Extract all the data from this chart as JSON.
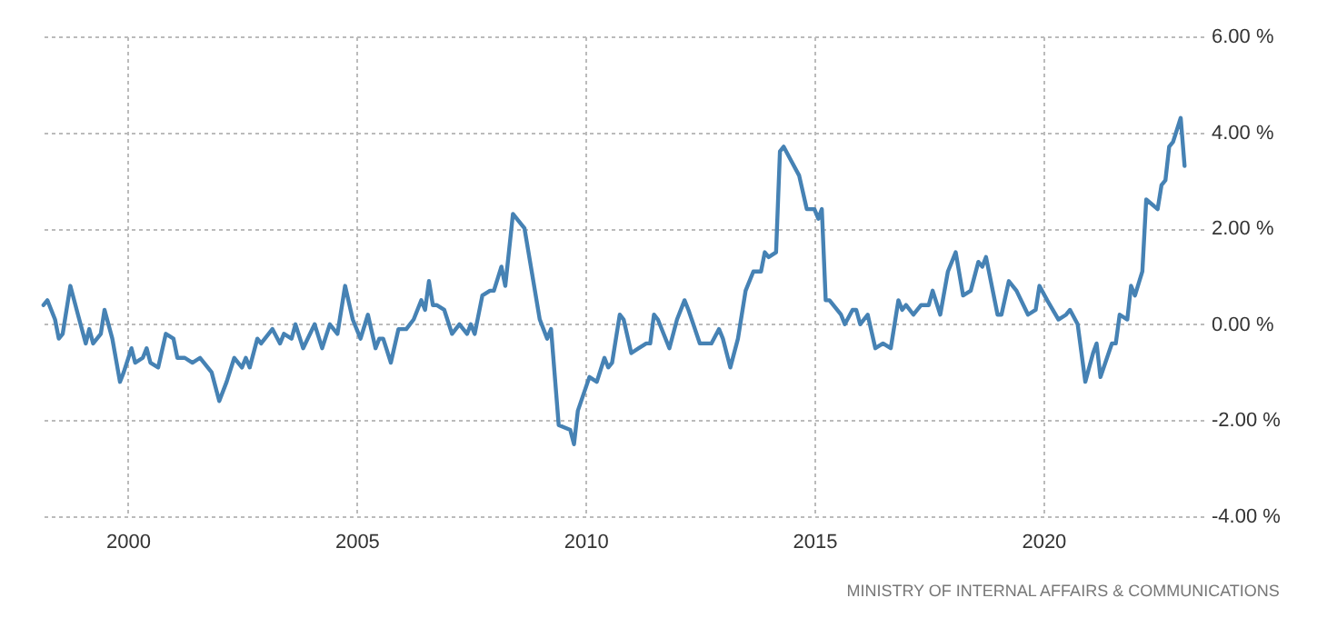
{
  "chart_data": {
    "type": "line",
    "annotations": [
      "MINISTRY OF INTERNAL AFFAIRS & COMMUNICATIONS"
    ],
    "x": [
      "1998-03",
      "1998-04",
      "1998-06",
      "1998-07",
      "1998-08",
      "1998-10",
      "1998-12",
      "1999-02",
      "1999-03",
      "1999-04",
      "1999-06",
      "1999-07",
      "1999-09",
      "1999-11",
      "1999-12",
      "2000-02",
      "2000-03",
      "2000-05",
      "2000-06",
      "2000-07",
      "2000-09",
      "2000-11",
      "2001-01",
      "2001-02",
      "2001-04",
      "2001-06",
      "2001-08",
      "2001-09",
      "2001-11",
      "2002-01",
      "2002-03",
      "2002-05",
      "2002-07",
      "2002-08",
      "2002-09",
      "2002-11",
      "2002-12",
      "2003-03",
      "2003-05",
      "2003-06",
      "2003-08",
      "2003-09",
      "2003-11",
      "2004-02",
      "2004-04",
      "2004-06",
      "2004-08",
      "2004-10",
      "2004-12",
      "2005-02",
      "2005-04",
      "2005-06",
      "2005-07",
      "2005-08",
      "2005-10",
      "2005-12",
      "2006-02",
      "2006-04",
      "2006-06",
      "2006-07",
      "2006-08",
      "2006-09",
      "2006-10",
      "2006-12",
      "2007-02",
      "2007-04",
      "2007-06",
      "2007-07",
      "2007-08",
      "2007-10",
      "2007-12",
      "2008-01",
      "2008-03",
      "2008-04",
      "2008-06",
      "2008-08",
      "2008-09",
      "2009-01",
      "2009-03",
      "2009-04",
      "2009-06",
      "2009-09",
      "2009-10",
      "2009-11",
      "2010-02",
      "2010-04",
      "2010-06",
      "2010-07",
      "2010-08",
      "2010-10",
      "2010-11",
      "2011-01",
      "2011-03",
      "2011-05",
      "2011-06",
      "2011-07",
      "2011-08",
      "2011-11",
      "2012-01",
      "2012-03",
      "2012-04",
      "2012-07",
      "2012-09",
      "2012-10",
      "2012-12",
      "2013-01",
      "2013-03",
      "2013-05",
      "2013-07",
      "2013-09",
      "2013-11",
      "2013-12",
      "2014-01",
      "2014-03",
      "2014-04",
      "2014-05",
      "2014-07",
      "2014-09",
      "2014-11",
      "2015-01",
      "2015-02",
      "2015-03",
      "2015-04",
      "2015-05",
      "2015-08",
      "2015-09",
      "2015-11",
      "2015-12",
      "2016-01",
      "2016-03",
      "2016-05",
      "2016-07",
      "2016-09",
      "2016-11",
      "2016-12",
      "2017-01",
      "2017-03",
      "2017-05",
      "2017-07",
      "2017-08",
      "2017-10",
      "2017-12",
      "2018-02",
      "2018-04",
      "2018-06",
      "2018-08",
      "2018-09",
      "2018-10",
      "2019-01",
      "2019-02",
      "2019-04",
      "2019-06",
      "2019-09",
      "2019-11",
      "2019-12",
      "2020-02",
      "2020-05",
      "2020-07",
      "2020-08",
      "2020-10",
      "2020-12",
      "2021-02",
      "2021-03",
      "2021-04",
      "2021-07",
      "2021-08",
      "2021-09",
      "2021-11",
      "2021-12",
      "2022-01",
      "2022-03",
      "2022-04",
      "2022-07",
      "2022-08",
      "2022-09",
      "2022-10",
      "2022-11",
      "2023-01",
      "2023-02"
    ],
    "series": [
      {
        "color": "#4682b4",
        "values": [
          0.4,
          0.5,
          0.1,
          -0.3,
          -0.2,
          0.8,
          0.2,
          -0.4,
          -0.1,
          -0.4,
          -0.2,
          0.3,
          -0.3,
          -1.2,
          -1.0,
          -0.5,
          -0.8,
          -0.7,
          -0.5,
          -0.8,
          -0.9,
          -0.2,
          -0.3,
          -0.7,
          -0.7,
          -0.8,
          -0.7,
          -0.8,
          -1.0,
          -1.6,
          -1.2,
          -0.7,
          -0.9,
          -0.7,
          -0.9,
          -0.3,
          -0.4,
          -0.1,
          -0.4,
          -0.2,
          -0.3,
          0.0,
          -0.5,
          0.0,
          -0.5,
          0.0,
          -0.2,
          0.8,
          0.1,
          -0.3,
          0.2,
          -0.5,
          -0.3,
          -0.3,
          -0.8,
          -0.1,
          -0.1,
          0.1,
          0.5,
          0.3,
          0.9,
          0.4,
          0.4,
          0.3,
          -0.2,
          0.0,
          -0.2,
          0.0,
          -0.2,
          0.6,
          0.7,
          0.7,
          1.2,
          0.8,
          2.3,
          2.1,
          2.0,
          0.1,
          -0.3,
          -0.1,
          -2.1,
          -2.2,
          -2.5,
          -1.8,
          -1.1,
          -1.2,
          -0.7,
          -0.9,
          -0.8,
          0.2,
          0.1,
          -0.6,
          -0.5,
          -0.4,
          -0.4,
          0.2,
          0.1,
          -0.5,
          0.1,
          0.5,
          0.3,
          -0.4,
          -0.4,
          -0.4,
          -0.1,
          -0.3,
          -0.9,
          -0.3,
          0.7,
          1.1,
          1.1,
          1.5,
          1.4,
          1.5,
          3.6,
          3.7,
          3.4,
          3.1,
          2.4,
          2.4,
          2.2,
          2.4,
          0.5,
          0.5,
          0.2,
          0.0,
          0.3,
          0.3,
          0.0,
          0.2,
          -0.5,
          -0.4,
          -0.5,
          0.5,
          0.3,
          0.4,
          0.2,
          0.4,
          0.4,
          0.7,
          0.2,
          1.1,
          1.5,
          0.6,
          0.7,
          1.3,
          1.2,
          1.4,
          0.2,
          0.2,
          0.9,
          0.7,
          0.2,
          0.3,
          0.8,
          0.5,
          0.1,
          0.2,
          0.3,
          0.0,
          -1.2,
          -0.6,
          -0.4,
          -1.1,
          -0.4,
          -0.4,
          0.2,
          0.1,
          0.8,
          0.6,
          1.1,
          2.6,
          2.4,
          2.9,
          3.0,
          3.7,
          3.8,
          4.3,
          3.3
        ]
      }
    ],
    "xlim": [
      "1998-02",
      "2023-07"
    ],
    "xticks": [
      "2000",
      "2005",
      "2010",
      "2015",
      "2020"
    ],
    "ylim": [
      -4,
      6
    ],
    "yticks": [
      {
        "value": -4,
        "label": "-4.00 %"
      },
      {
        "value": -2,
        "label": "-2.00 %"
      },
      {
        "value": 0,
        "label": "0.00 %"
      },
      {
        "value": 2,
        "label": "2.00 %"
      },
      {
        "value": 4,
        "label": "4.00 %"
      },
      {
        "value": 6,
        "label": "6.00 %"
      }
    ],
    "grid": true
  }
}
